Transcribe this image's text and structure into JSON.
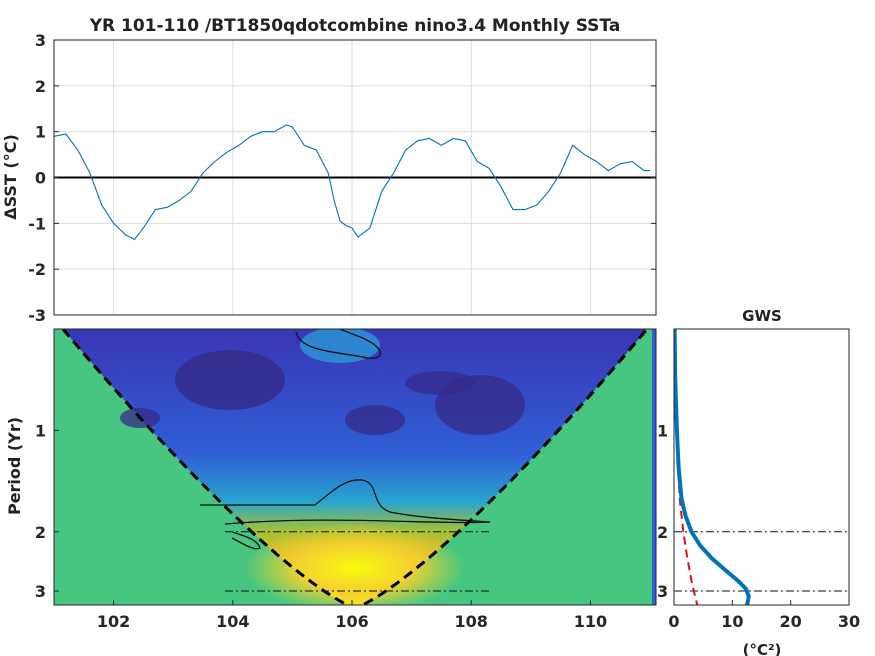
{
  "title": "YR 101-110 /BT1850qdotcombine nino3.4 Monthly SSTa",
  "chart_data": [
    {
      "type": "line",
      "panel": "time-series",
      "title": "YR 101-110 /BT1850qdotcombine nino3.4 Monthly SSTa",
      "ylabel": "ΔSST (°C)",
      "xlim": [
        101,
        111.1
      ],
      "ylim": [
        -3,
        3
      ],
      "xticks": [
        "102",
        "104",
        "106",
        "108",
        "110"
      ],
      "yticks": [
        "-3",
        "-2",
        "-1",
        "0",
        "1",
        "2",
        "3"
      ],
      "grid": true,
      "zero_line": true,
      "line_color": "#0072bd",
      "x": [
        101.0,
        101.2,
        101.4,
        101.6,
        101.8,
        102.0,
        102.2,
        102.35,
        102.5,
        102.7,
        102.9,
        103.1,
        103.3,
        103.5,
        103.7,
        103.9,
        104.1,
        104.3,
        104.5,
        104.7,
        104.9,
        105.0,
        105.2,
        105.4,
        105.6,
        105.7,
        105.8,
        105.9,
        106.0,
        106.1,
        106.3,
        106.5,
        106.7,
        106.9,
        107.1,
        107.3,
        107.5,
        107.7,
        107.9,
        108.1,
        108.3,
        108.5,
        108.7,
        108.9,
        109.1,
        109.3,
        109.5,
        109.7,
        109.9,
        110.1,
        110.3,
        110.5,
        110.7,
        110.9,
        111.0
      ],
      "y": [
        0.9,
        0.95,
        0.6,
        0.1,
        -0.6,
        -1.0,
        -1.25,
        -1.35,
        -1.1,
        -0.7,
        -0.65,
        -0.5,
        -0.3,
        0.1,
        0.35,
        0.55,
        0.7,
        0.9,
        1.0,
        1.0,
        1.15,
        1.1,
        0.7,
        0.6,
        0.1,
        -0.5,
        -0.95,
        -1.05,
        -1.1,
        -1.3,
        -1.1,
        -0.3,
        0.1,
        0.6,
        0.8,
        0.85,
        0.7,
        0.85,
        0.8,
        0.35,
        0.2,
        -0.2,
        -0.7,
        -0.7,
        -0.6,
        -0.3,
        0.1,
        0.7,
        0.5,
        0.35,
        0.15,
        0.3,
        0.35,
        0.15,
        0.15
      ]
    },
    {
      "type": "heatmap",
      "panel": "wavelet-power-spectrum",
      "ylabel": "Period (Yr)",
      "xlim": [
        101,
        111.1
      ],
      "xticks": [
        "102",
        "104",
        "106",
        "108",
        "110"
      ],
      "ylim": [
        0.5,
        3.3
      ],
      "yscale": "log",
      "yticks": [
        "1",
        "2",
        "3"
      ],
      "period_reference_lines": [
        2,
        3
      ],
      "colormap": "parula",
      "cone_of_influence": "dashed black",
      "high_power_center": {
        "time": 106,
        "period": 2.7
      }
    },
    {
      "type": "line",
      "panel": "global-wavelet-spectrum",
      "title": "GWS",
      "xlabel": "(°C²)",
      "xlim": [
        0,
        30
      ],
      "xticks": [
        "0",
        "10",
        "20",
        "30"
      ],
      "ylim": [
        0.5,
        3.3
      ],
      "yscale": "log",
      "period_reference_lines": [
        2,
        3
      ],
      "series": [
        {
          "color": "#0072bd",
          "period": [
            0.5,
            0.7,
            1.0,
            1.3,
            1.6,
            1.8,
            2.0,
            2.2,
            2.4,
            2.6,
            2.8,
            2.95,
            3.1,
            3.2,
            3.3
          ],
          "power": [
            0.1,
            0.2,
            0.5,
            0.8,
            1.3,
            2.0,
            3.0,
            4.5,
            6.5,
            8.8,
            11.0,
            12.3,
            12.8,
            12.7,
            12.5
          ]
        },
        {
          "style": "dashed",
          "color": "#e01010",
          "period": [
            0.5,
            0.8,
            1.0,
            1.3,
            1.6,
            2.0,
            2.4,
            2.8,
            3.1,
            3.3
          ],
          "power": [
            0.05,
            0.2,
            0.4,
            0.7,
            1.0,
            1.6,
            2.3,
            3.0,
            3.6,
            4.0
          ]
        }
      ]
    }
  ]
}
